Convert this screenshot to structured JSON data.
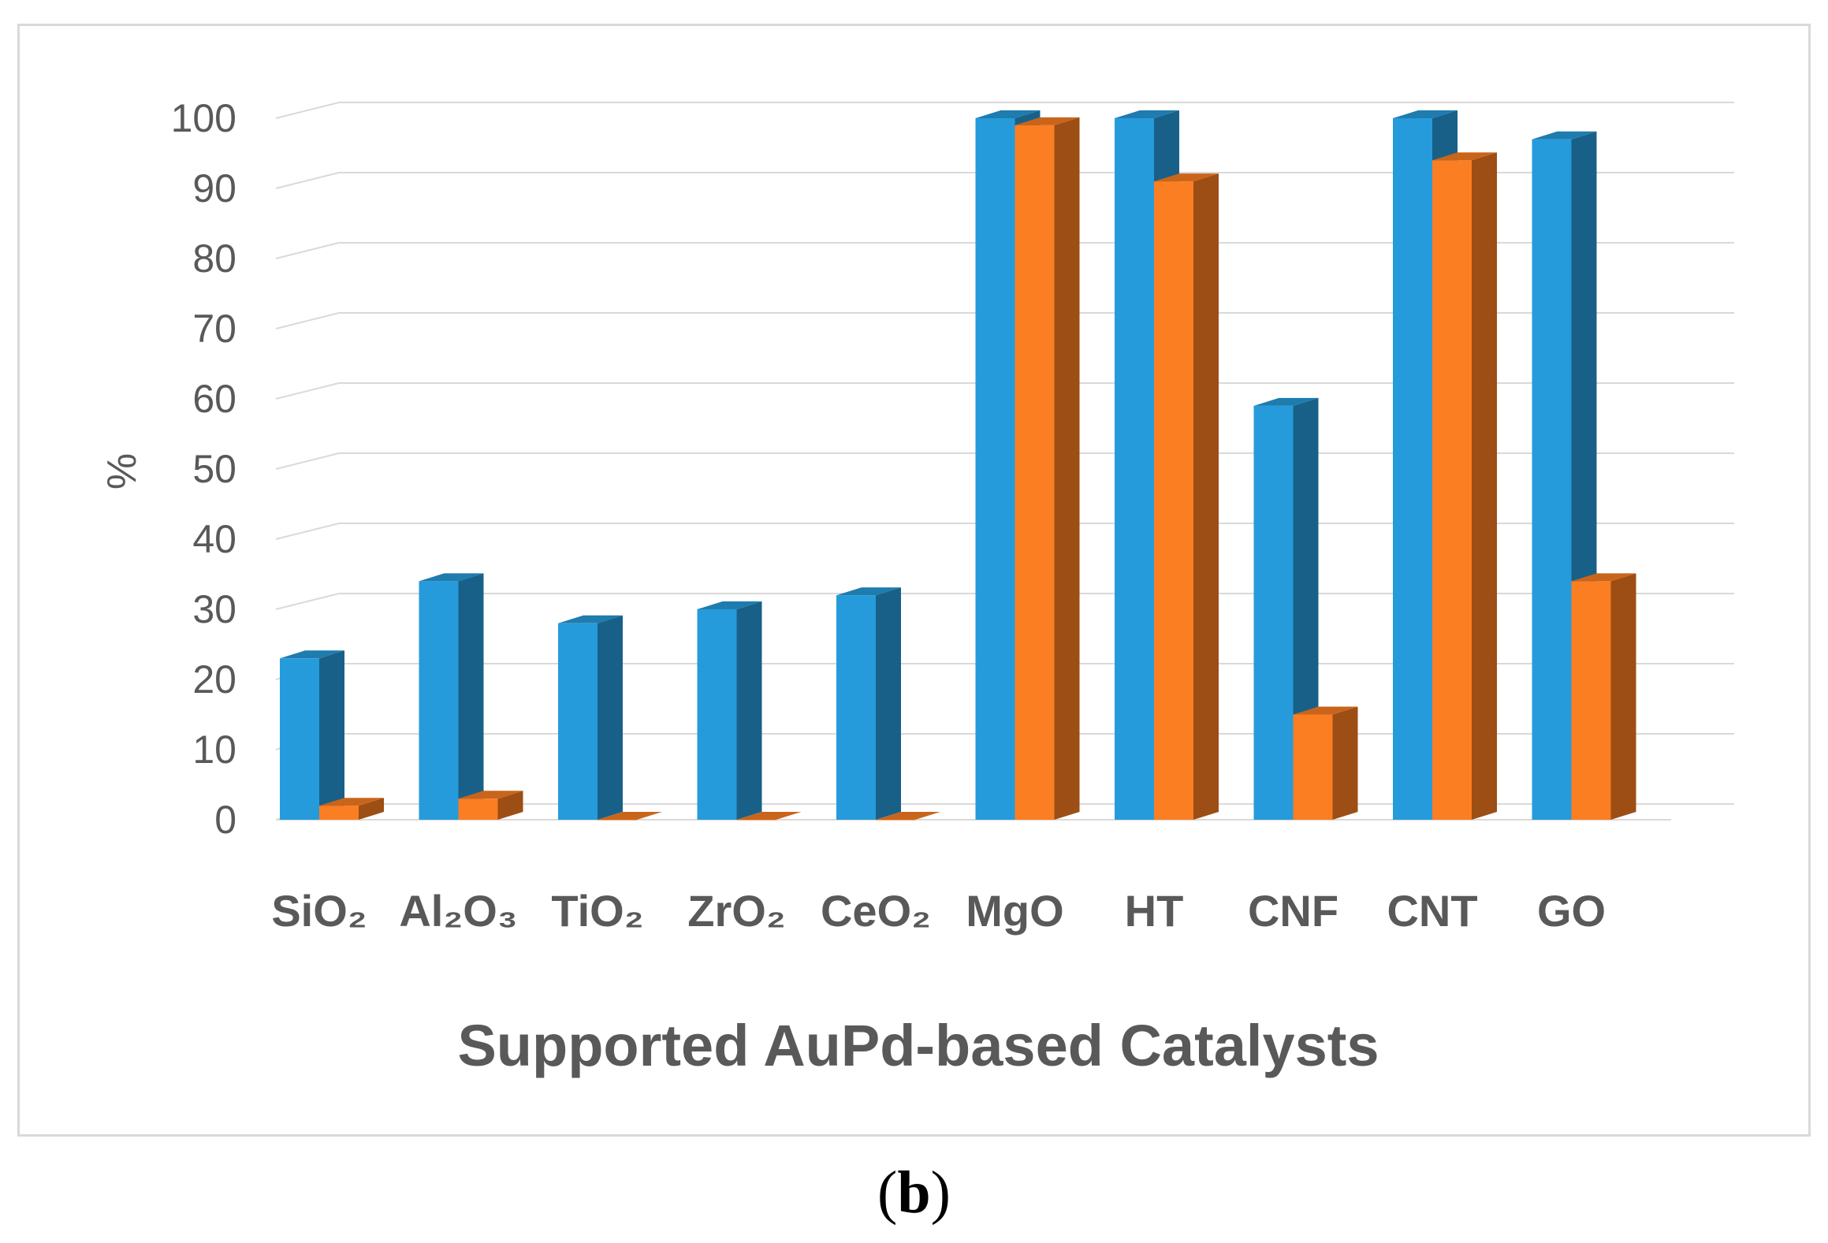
{
  "chart_data": {
    "type": "bar",
    "style": "3d-clustered-column",
    "categories": [
      "SiO₂",
      "Al₂O₃",
      "TiO₂",
      "ZrO₂",
      "CeO₂",
      "MgO",
      "HT",
      "CNF",
      "CNT",
      "GO"
    ],
    "series": [
      {
        "values": [
          23,
          34,
          28,
          30,
          32,
          100,
          100,
          59,
          100,
          97
        ],
        "color": "#269bdb"
      },
      {
        "values": [
          2,
          3,
          0,
          0,
          0,
          99,
          91,
          15,
          94,
          34
        ],
        "color": "#fb7e22"
      }
    ],
    "xlabel": "Supported AuPd-based Catalysts",
    "ylabel": "%",
    "ylim": [
      0,
      100
    ],
    "yticks": [
      "0",
      "10",
      "20",
      "30",
      "40",
      "50",
      "60",
      "70",
      "80",
      "90",
      "100"
    ],
    "grid": true,
    "legend": "none"
  },
  "caption": {
    "open": "(",
    "letter": "b",
    "close": ")"
  }
}
